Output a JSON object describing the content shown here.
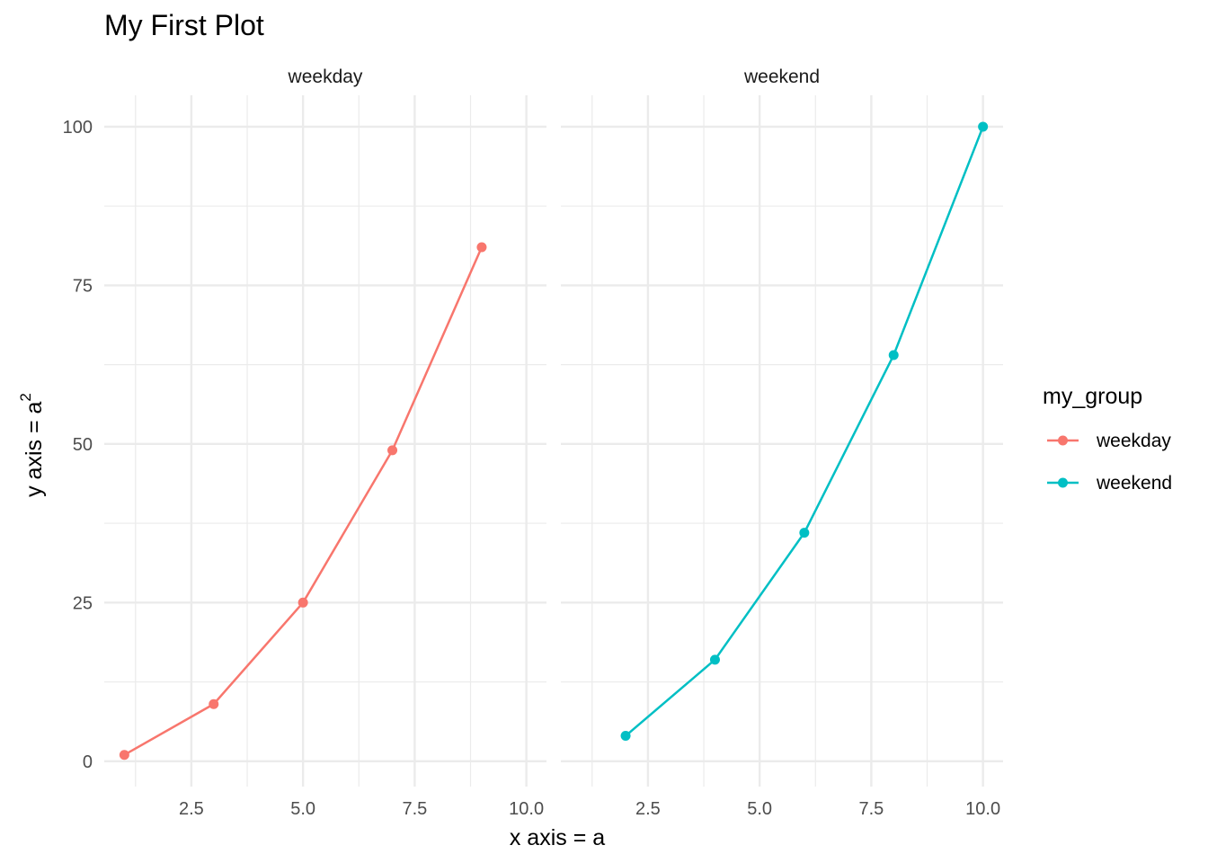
{
  "chart_data": {
    "type": "line",
    "title": "My First Plot",
    "xlabel": "x axis = a",
    "ylabel_base": "y axis = a",
    "ylabel_sup": "2",
    "xlim": [
      0.55,
      10.45
    ],
    "ylim": [
      -4.0,
      104.95
    ],
    "x_ticks": [
      2.5,
      5.0,
      7.5,
      10.0
    ],
    "x_tick_labels": [
      "2.5",
      "5.0",
      "7.5",
      "10.0"
    ],
    "x_minor": [
      1.25,
      3.75,
      6.25,
      8.75
    ],
    "y_ticks": [
      0,
      25,
      50,
      75,
      100
    ],
    "y_tick_labels": [
      "0",
      "25",
      "50",
      "75",
      "100"
    ],
    "y_minor": [
      12.5,
      37.5,
      62.5,
      87.5
    ],
    "grid": true,
    "legend": {
      "title": "my_group",
      "position": "right",
      "entries": [
        "weekday",
        "weekend"
      ]
    },
    "facets": [
      {
        "label": "weekday",
        "series": {
          "name": "weekday",
          "color": "#F8766D",
          "x": [
            1,
            3,
            5,
            7,
            9
          ],
          "y": [
            1,
            9,
            25,
            49,
            81
          ]
        }
      },
      {
        "label": "weekend",
        "series": {
          "name": "weekend",
          "color": "#00BFC4",
          "x": [
            2,
            4,
            6,
            8,
            10
          ],
          "y": [
            4,
            16,
            36,
            64,
            100
          ]
        }
      }
    ],
    "colors": {
      "weekday": "#F8766D",
      "weekend": "#00BFC4"
    }
  }
}
